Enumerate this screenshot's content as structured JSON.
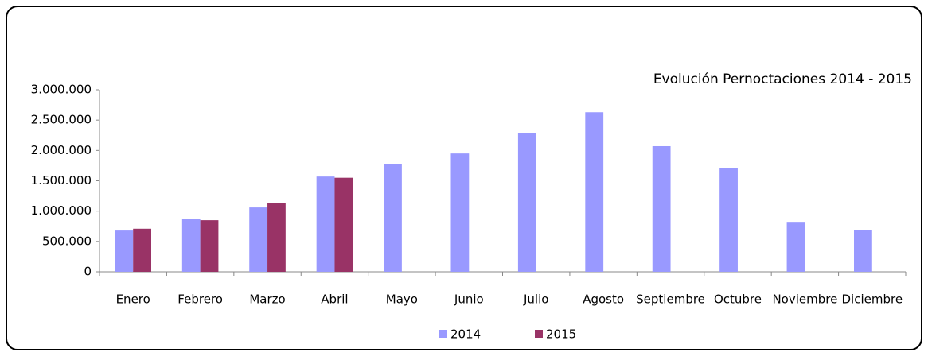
{
  "chart_data": {
    "type": "bar",
    "title": "Evolución Pernoctaciones 2014 - 2015",
    "categories": [
      "Enero",
      "Febrero",
      "Marzo",
      "Abril",
      "Mayo",
      "Junio",
      "Julio",
      "Agosto",
      "Septiembre",
      "Octubre",
      "Noviembre",
      "Diciembre"
    ],
    "series": [
      {
        "name": "2014",
        "color": "#9999ff",
        "values": [
          680000,
          865000,
          1060000,
          1570000,
          1770000,
          1950000,
          2280000,
          2630000,
          2070000,
          1710000,
          810000,
          690000
        ]
      },
      {
        "name": "2015",
        "color": "#993366",
        "values": [
          710000,
          850000,
          1130000,
          1550000,
          null,
          null,
          null,
          null,
          null,
          null,
          null,
          null
        ]
      }
    ],
    "ylim": [
      0,
      3000000
    ],
    "yticks": [
      0,
      {
        "value": 500000,
        "label": "500.000"
      },
      {
        "value": 1000000,
        "label": "1.000.000"
      },
      {
        "value": 1500000,
        "label": "1.500.000"
      },
      {
        "value": 2000000,
        "label": "2.000.000"
      },
      {
        "value": 2500000,
        "label": "2.500.000"
      },
      {
        "value": 3000000,
        "label": "3.000.000"
      }
    ],
    "grid": false,
    "legend": "bottom"
  }
}
